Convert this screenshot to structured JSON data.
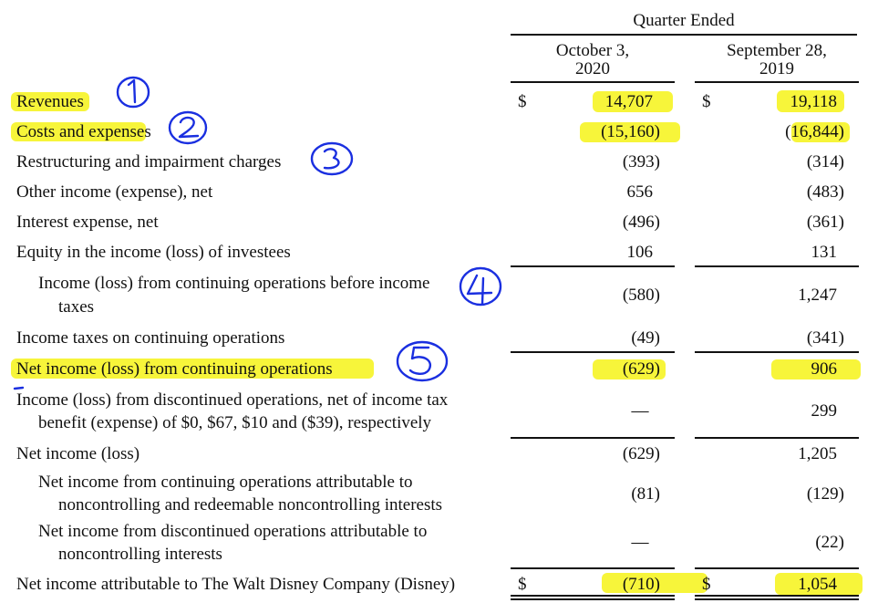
{
  "header": {
    "period": "Quarter Ended",
    "col1": [
      "October 3,",
      "2020"
    ],
    "col2": [
      "September 28,",
      "2019"
    ]
  },
  "currency": "$",
  "rows": [
    {
      "label": "Revenues",
      "col1": "14,707",
      "col2": "19,118"
    },
    {
      "label": "Costs and expenses",
      "col1": "(15,160)",
      "col2": "(16,844)"
    },
    {
      "label": "Restructuring and impairment charges",
      "col1": "(393)",
      "col2": "(314)"
    },
    {
      "label": "Other income (expense), net",
      "col1": "656",
      "col2": "(483)"
    },
    {
      "label": "Interest expense, net",
      "col1": "(496)",
      "col2": "(361)"
    },
    {
      "label": "Equity in the income (loss) of investees",
      "col1": "106",
      "col2": "131"
    },
    {
      "label": [
        "Income (loss) from continuing operations before income",
        "taxes"
      ],
      "col1": "(580)",
      "col2": "1,247"
    },
    {
      "label": "Income taxes on continuing operations",
      "col1": "(49)",
      "col2": "(341)"
    },
    {
      "label": "Net income (loss) from continuing operations",
      "col1": "(629)",
      "col2": "906"
    },
    {
      "label": [
        "Income (loss) from discontinued operations, net of income tax",
        "benefit (expense) of $0, $67, $10 and ($39), respectively"
      ],
      "col1": "—",
      "col2": "299"
    },
    {
      "label": "Net income (loss)",
      "col1": "(629)",
      "col2": "1,205"
    },
    {
      "label": [
        "Net income from continuing operations attributable to",
        "noncontrolling and redeemable noncontrolling interests"
      ],
      "col1": "(81)",
      "col2": "(129)"
    },
    {
      "label": [
        "Net income from discontinued operations attributable to",
        "noncontrolling interests"
      ],
      "col1": "—",
      "col2": "(22)"
    },
    {
      "label": "Net income attributable to The Walt Disney Company (Disney)",
      "col1": "(710)",
      "col2": "1,054"
    }
  ],
  "annotations": {
    "marks": [
      "1",
      "2",
      "3",
      "4",
      "5"
    ],
    "ink_color": "#1a2fe0",
    "highlight_color": "#f7f53a"
  }
}
